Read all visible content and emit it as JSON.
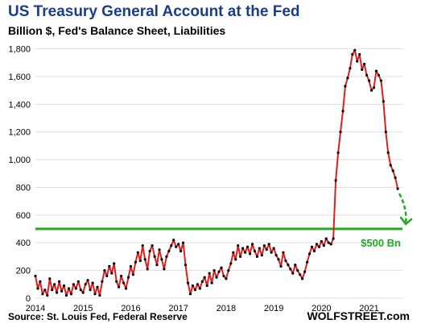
{
  "header": {
    "title": "US Treasury General Account at the Fed",
    "subtitle": "Billion $, Fed's Balance Sheet, Liabilities"
  },
  "footer": {
    "source": "Source: St. Louis Fed, Federal Reserve",
    "brand": "WOLFSTREET.com"
  },
  "colors": {
    "title": "#1a3d8a",
    "line": "#e01e1e",
    "marker": "#000000",
    "threshold": "#22aa22",
    "grid": "#dddddd"
  },
  "chart_data": {
    "type": "line",
    "title": "US Treasury General Account at the Fed",
    "subtitle": "Billion $, Fed's Balance Sheet, Liabilities",
    "xlabel": "",
    "ylabel": "",
    "xlim": [
      2014.0,
      2021.7
    ],
    "ylim": [
      0,
      1850
    ],
    "grid": "horizontal",
    "y_ticks": [
      0,
      200,
      400,
      600,
      800,
      1000,
      1200,
      1400,
      1600,
      1800
    ],
    "y_tick_labels": [
      "0",
      "200",
      "400",
      "600",
      "800",
      "1,000",
      "1,200",
      "1,400",
      "1,600",
      "1,800"
    ],
    "x_ticks": [
      2014,
      2015,
      2016,
      2017,
      2018,
      2019,
      2020,
      2021
    ],
    "x_tick_labels": [
      "2014",
      "2015",
      "2016",
      "2017",
      "2018",
      "2019",
      "2020",
      "2021"
    ],
    "reference_line": {
      "value": 500,
      "label": "$500 Bn"
    },
    "series": [
      {
        "points": [
          [
            2014.0,
            160
          ],
          [
            2014.05,
            70
          ],
          [
            2014.1,
            120
          ],
          [
            2014.15,
            30
          ],
          [
            2014.2,
            60
          ],
          [
            2014.25,
            20
          ],
          [
            2014.3,
            140
          ],
          [
            2014.35,
            60
          ],
          [
            2014.4,
            100
          ],
          [
            2014.45,
            40
          ],
          [
            2014.5,
            120
          ],
          [
            2014.55,
            50
          ],
          [
            2014.6,
            90
          ],
          [
            2014.65,
            20
          ],
          [
            2014.7,
            70
          ],
          [
            2014.75,
            30
          ],
          [
            2014.8,
            100
          ],
          [
            2014.85,
            70
          ],
          [
            2014.9,
            120
          ],
          [
            2014.95,
            60
          ],
          [
            2015.0,
            40
          ],
          [
            2015.05,
            100
          ],
          [
            2015.1,
            130
          ],
          [
            2015.15,
            60
          ],
          [
            2015.2,
            110
          ],
          [
            2015.25,
            30
          ],
          [
            2015.3,
            80
          ],
          [
            2015.35,
            20
          ],
          [
            2015.4,
            120
          ],
          [
            2015.45,
            200
          ],
          [
            2015.5,
            160
          ],
          [
            2015.55,
            230
          ],
          [
            2015.6,
            180
          ],
          [
            2015.65,
            250
          ],
          [
            2015.7,
            120
          ],
          [
            2015.75,
            80
          ],
          [
            2015.8,
            160
          ],
          [
            2015.85,
            110
          ],
          [
            2015.9,
            70
          ],
          [
            2015.95,
            150
          ],
          [
            2016.0,
            230
          ],
          [
            2016.05,
            170
          ],
          [
            2016.1,
            260
          ],
          [
            2016.15,
            330
          ],
          [
            2016.2,
            270
          ],
          [
            2016.25,
            380
          ],
          [
            2016.3,
            280
          ],
          [
            2016.35,
            210
          ],
          [
            2016.4,
            340
          ],
          [
            2016.45,
            380
          ],
          [
            2016.5,
            300
          ],
          [
            2016.55,
            240
          ],
          [
            2016.6,
            350
          ],
          [
            2016.65,
            280
          ],
          [
            2016.7,
            210
          ],
          [
            2016.75,
            300
          ],
          [
            2016.8,
            340
          ],
          [
            2016.85,
            380
          ],
          [
            2016.9,
            420
          ],
          [
            2016.95,
            370
          ],
          [
            2017.0,
            390
          ],
          [
            2017.05,
            340
          ],
          [
            2017.1,
            400
          ],
          [
            2017.15,
            240
          ],
          [
            2017.2,
            110
          ],
          [
            2017.25,
            30
          ],
          [
            2017.3,
            90
          ],
          [
            2017.35,
            60
          ],
          [
            2017.4,
            100
          ],
          [
            2017.45,
            70
          ],
          [
            2017.5,
            120
          ],
          [
            2017.55,
            150
          ],
          [
            2017.6,
            90
          ],
          [
            2017.65,
            180
          ],
          [
            2017.7,
            110
          ],
          [
            2017.75,
            200
          ],
          [
            2017.8,
            150
          ],
          [
            2017.85,
            190
          ],
          [
            2017.9,
            220
          ],
          [
            2017.95,
            160
          ],
          [
            2018.0,
            140
          ],
          [
            2018.05,
            200
          ],
          [
            2018.1,
            250
          ],
          [
            2018.15,
            330
          ],
          [
            2018.2,
            280
          ],
          [
            2018.25,
            380
          ],
          [
            2018.3,
            300
          ],
          [
            2018.35,
            360
          ],
          [
            2018.4,
            330
          ],
          [
            2018.45,
            370
          ],
          [
            2018.5,
            320
          ],
          [
            2018.55,
            390
          ],
          [
            2018.6,
            340
          ],
          [
            2018.65,
            300
          ],
          [
            2018.7,
            360
          ],
          [
            2018.75,
            310
          ],
          [
            2018.8,
            380
          ],
          [
            2018.85,
            350
          ],
          [
            2018.9,
            390
          ],
          [
            2018.95,
            330
          ],
          [
            2019.0,
            360
          ],
          [
            2019.05,
            310
          ],
          [
            2019.1,
            280
          ],
          [
            2019.15,
            230
          ],
          [
            2019.2,
            330
          ],
          [
            2019.25,
            270
          ],
          [
            2019.3,
            240
          ],
          [
            2019.35,
            210
          ],
          [
            2019.4,
            180
          ],
          [
            2019.45,
            240
          ],
          [
            2019.5,
            200
          ],
          [
            2019.55,
            170
          ],
          [
            2019.6,
            140
          ],
          [
            2019.65,
            190
          ],
          [
            2019.7,
            260
          ],
          [
            2019.75,
            320
          ],
          [
            2019.8,
            370
          ],
          [
            2019.85,
            340
          ],
          [
            2019.9,
            390
          ],
          [
            2019.95,
            370
          ],
          [
            2020.0,
            410
          ],
          [
            2020.05,
            380
          ],
          [
            2020.1,
            430
          ],
          [
            2020.15,
            400
          ],
          [
            2020.2,
            390
          ],
          [
            2020.25,
            430
          ],
          [
            2020.3,
            850
          ],
          [
            2020.35,
            1050
          ],
          [
            2020.4,
            1200
          ],
          [
            2020.45,
            1350
          ],
          [
            2020.5,
            1530
          ],
          [
            2020.55,
            1590
          ],
          [
            2020.6,
            1660
          ],
          [
            2020.65,
            1760
          ],
          [
            2020.7,
            1790
          ],
          [
            2020.75,
            1710
          ],
          [
            2020.8,
            1760
          ],
          [
            2020.85,
            1650
          ],
          [
            2020.9,
            1690
          ],
          [
            2020.95,
            1610
          ],
          [
            2021.0,
            1570
          ],
          [
            2021.05,
            1500
          ],
          [
            2021.1,
            1520
          ],
          [
            2021.15,
            1640
          ],
          [
            2021.2,
            1610
          ],
          [
            2021.25,
            1570
          ],
          [
            2021.3,
            1420
          ],
          [
            2021.35,
            1200
          ],
          [
            2021.4,
            1050
          ],
          [
            2021.45,
            960
          ],
          [
            2021.5,
            920
          ],
          [
            2021.55,
            870
          ],
          [
            2021.6,
            790
          ]
        ]
      }
    ]
  }
}
